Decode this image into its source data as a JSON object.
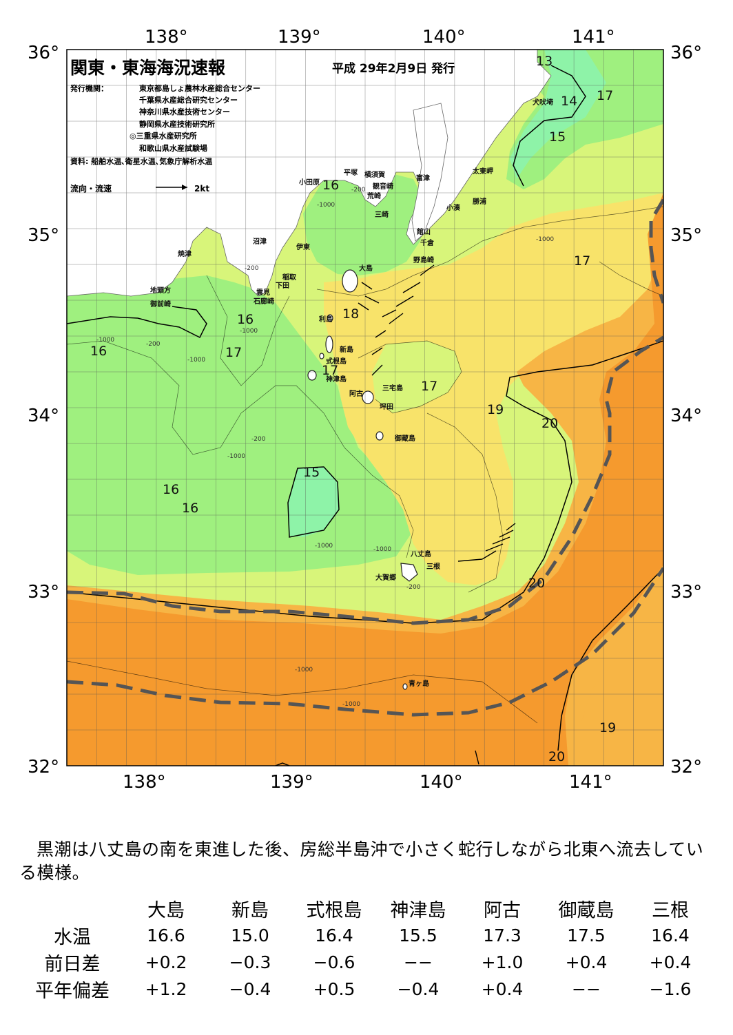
{
  "title": "関東・東海海況速報",
  "issue_date": "平成 29年2月9日 発行",
  "publisher": {
    "label": "発行機関：",
    "orgs": [
      "東京都島しょ農林水産総合センター",
      "千葉県水産総合研究センター",
      "神奈川県水産技術センター",
      "静岡県水産技術研究所",
      "◎三重県水産研究所",
      "和歌山県水産試験場"
    ]
  },
  "sources": "資料: 船舶水温､衛星水温､気象庁解析水温",
  "legend": {
    "label": "流向・流速",
    "unit": "2kt"
  },
  "map": {
    "lon_ticks": [
      "138°",
      "139°",
      "140°",
      "141°"
    ],
    "lat_ticks": [
      "36°",
      "35°",
      "34°",
      "33°",
      "32°"
    ],
    "colors": {
      "land": "#ffffff",
      "water_15": "#8ef3a8",
      "water_16": "#9ff07f",
      "water_17": "#d8f57a",
      "water_18": "#f8e36a",
      "water_19": "#f7b545",
      "water_20": "#f59a2e",
      "kuroshio_axis": "#555555"
    },
    "isotherm_labels": [
      "13",
      "14",
      "17",
      "15",
      "16",
      "17",
      "18",
      "16",
      "17",
      "16",
      "17",
      "17",
      "19",
      "20",
      "15",
      "16",
      "16",
      "20",
      "19",
      "20"
    ],
    "depth_labels": [
      "-200",
      "-1000",
      "-200",
      "-1000",
      "-1000",
      "-200",
      "-1000",
      "-200",
      "-1000",
      "-1000",
      "-200",
      "-1000",
      "-1000",
      "-1000",
      "-1000"
    ],
    "places": [
      "犬吠埼",
      "太東岬",
      "勝浦",
      "小湊",
      "富津",
      "観音崎",
      "荒崎",
      "三崎",
      "横須賀",
      "平塚",
      "小田原",
      "館山",
      "千倉",
      "野島崎",
      "大島",
      "沼津",
      "伊東",
      "稲取",
      "下田",
      "雲見",
      "石廊崎",
      "焼津",
      "地頭方",
      "御前崎",
      "利島",
      "新島",
      "式根島",
      "神津島",
      "三宅島",
      "阿古",
      "坪田",
      "御蔵島",
      "八丈島",
      "三根",
      "大賀郷",
      "青ヶ島"
    ]
  },
  "summary": "黒潮は八丈島の南を東進した後、房総半島沖で小さく蛇行しながら北東へ流去している模様。",
  "table": {
    "columns": [
      "大島",
      "新島",
      "式根島",
      "神津島",
      "阿古",
      "御蔵島",
      "三根"
    ],
    "rows": [
      {
        "label": "水温",
        "values": [
          "16.6",
          "15.0",
          "16.4",
          "15.5",
          "17.3",
          "17.5",
          "16.4"
        ]
      },
      {
        "label": "前日差",
        "values": [
          "+0.2",
          "−0.3",
          "−0.6",
          "−−",
          "+1.0",
          "+0.4",
          "+0.4"
        ]
      },
      {
        "label": "平年偏差",
        "values": [
          "+1.2",
          "−0.4",
          "+0.5",
          "−0.4",
          "+0.4",
          "−−",
          "−1.6"
        ]
      }
    ]
  }
}
